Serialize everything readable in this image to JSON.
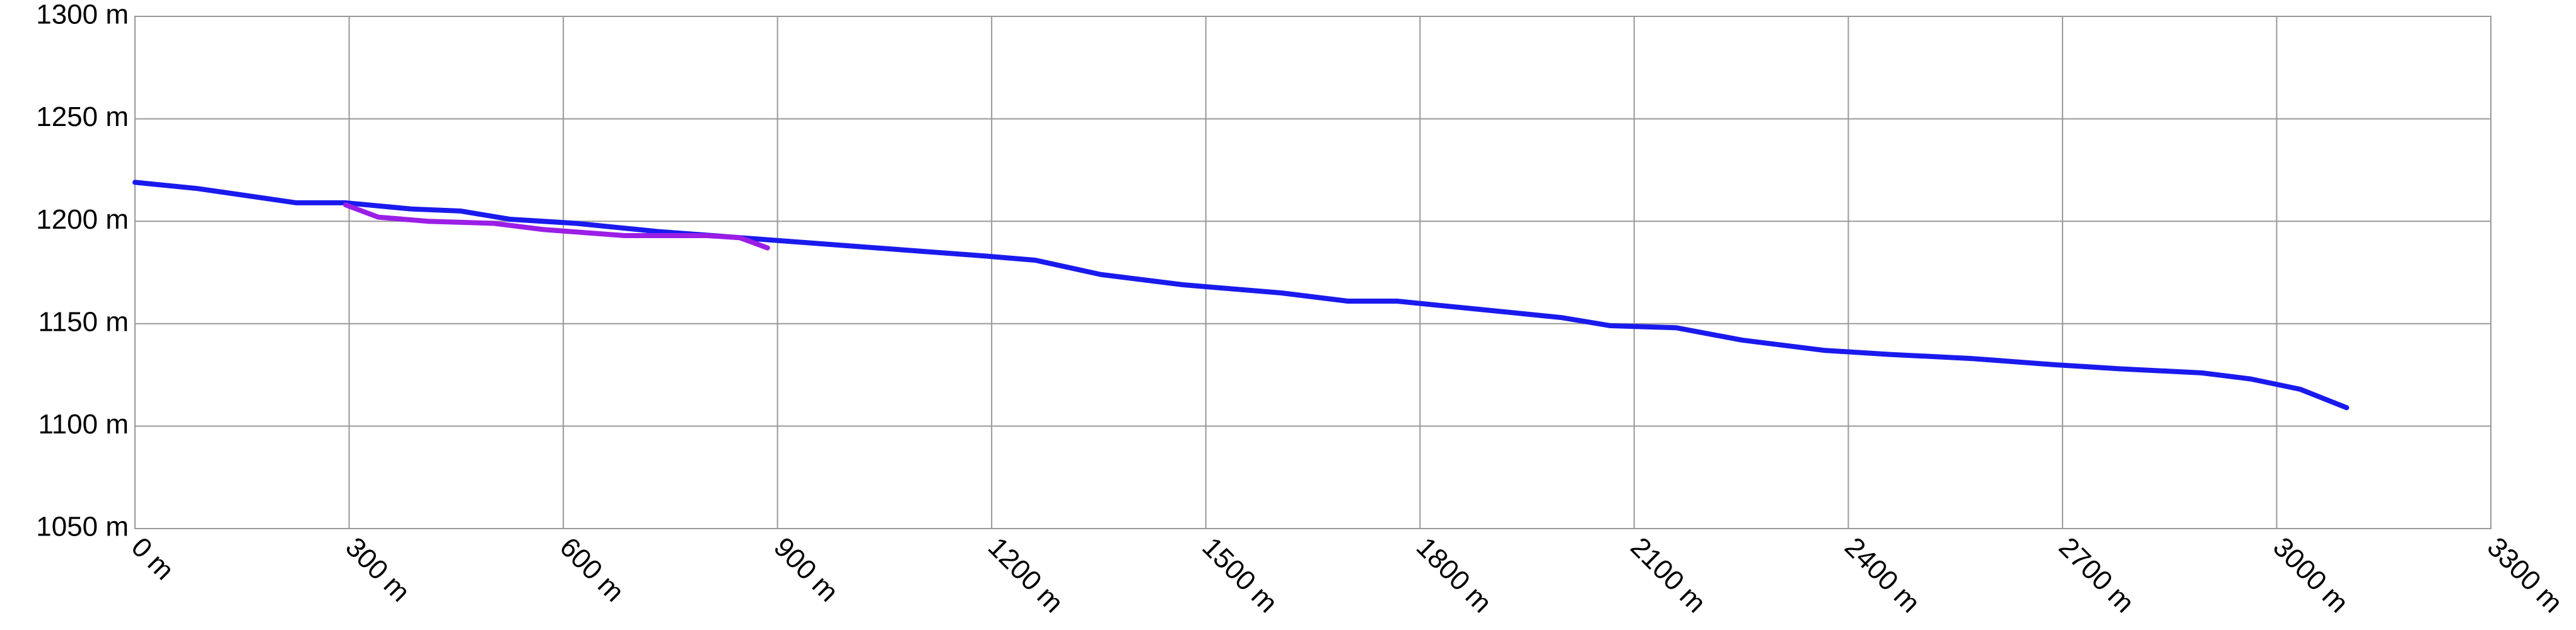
{
  "chart_data": {
    "type": "line",
    "xlim": [
      0,
      3300
    ],
    "xticks": [
      {
        "value": 0,
        "label": "0 m"
      },
      {
        "value": 300,
        "label": "300 m"
      },
      {
        "value": 600,
        "label": "600 m"
      },
      {
        "value": 900,
        "label": "900 m"
      },
      {
        "value": 1200,
        "label": "1200 m"
      },
      {
        "value": 1500,
        "label": "1500 m"
      },
      {
        "value": 1800,
        "label": "1800 m"
      },
      {
        "value": 2100,
        "label": "2100 m"
      },
      {
        "value": 2400,
        "label": "2400 m"
      },
      {
        "value": 2700,
        "label": "2700 m"
      },
      {
        "value": 3000,
        "label": "3000 m"
      },
      {
        "value": 3300,
        "label": "3300 m"
      }
    ],
    "ylim": [
      1050,
      1300
    ],
    "yticks": [
      {
        "value": 1050,
        "label": "1050 m"
      },
      {
        "value": 1100,
        "label": "1100 m"
      },
      {
        "value": 1150,
        "label": "1150 m"
      },
      {
        "value": 1200,
        "label": "1200 m"
      },
      {
        "value": 1250,
        "label": "1250 m"
      },
      {
        "value": 1300,
        "label": "1300 m"
      }
    ],
    "grid": true,
    "series": [
      {
        "color": "#1a1aee",
        "x": [
          0,
          87,
          226,
          295,
          387,
          456,
          525,
          617,
          732,
          847,
          962,
          1077,
          1192,
          1261,
          1353,
          1468,
          1606,
          1699,
          1768,
          1883,
          1998,
          2067,
          2159,
          2251,
          2366,
          2458,
          2573,
          2688,
          2780,
          2895,
          2964,
          3033,
          3098
        ],
        "values": [
          1219,
          1216,
          1209,
          1209,
          1206,
          1205,
          1201,
          1199,
          1195,
          1192,
          1189,
          1186,
          1183,
          1181,
          1174,
          1169,
          1165,
          1161,
          1161,
          1157,
          1153,
          1149,
          1148,
          1142,
          1137,
          1135,
          1133,
          1130,
          1128,
          1126,
          1123,
          1118,
          1109
        ]
      },
      {
        "color": "#9b1ee6",
        "x": [
          295,
          341,
          410,
          502,
          571,
          686,
          801,
          847,
          886
        ],
        "values": [
          1208,
          1202,
          1200,
          1199,
          1196,
          1193,
          1193,
          1192,
          1187
        ]
      }
    ]
  }
}
